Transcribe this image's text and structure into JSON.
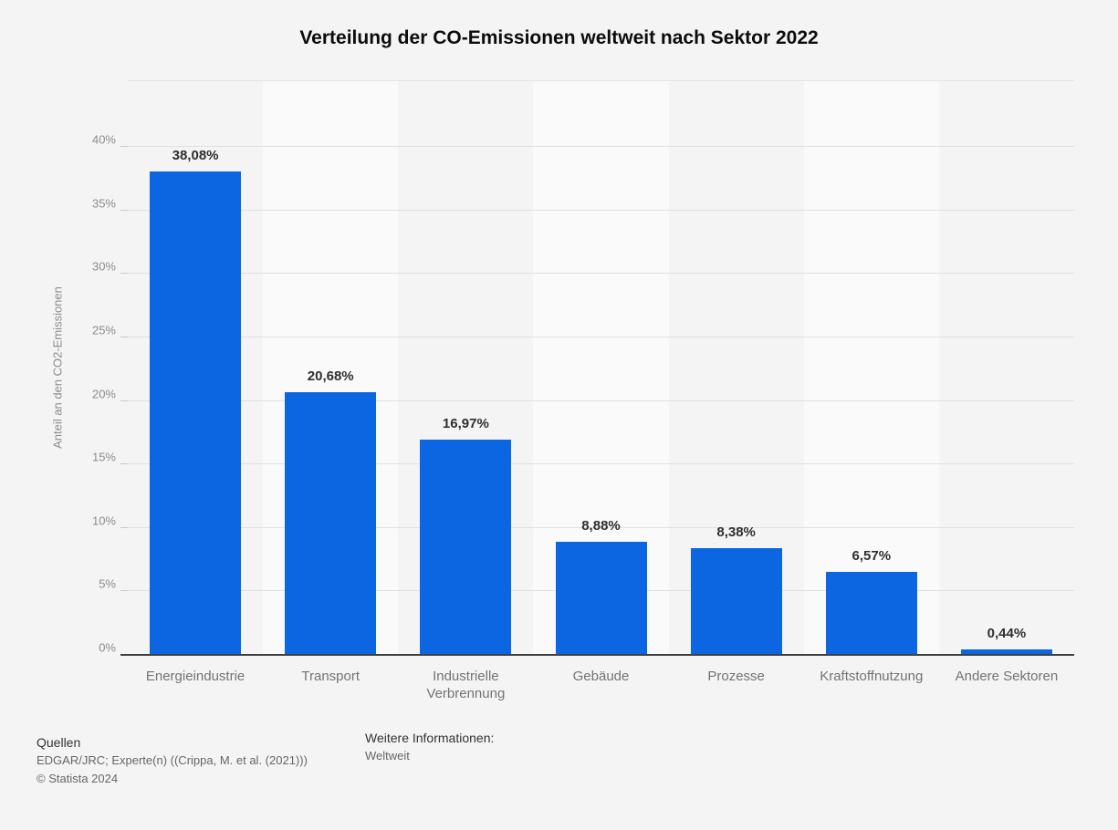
{
  "title": "Verteilung der CO-Emissionen weltweit nach Sektor 2022",
  "chart_data": {
    "type": "bar",
    "title": "Verteilung der CO-Emissionen weltweit nach Sektor 2022",
    "categories": [
      "Energieindustrie",
      "Transport",
      "Industrielle Verbrennung",
      "Gebäude",
      "Prozesse",
      "Kraftstoffnutzung",
      "Andere Sektoren"
    ],
    "values": [
      38.08,
      20.68,
      16.97,
      8.88,
      8.38,
      6.57,
      0.44
    ],
    "value_labels": [
      "38,08%",
      "20,68%",
      "16,97%",
      "8,88%",
      "8,38%",
      "6,57%",
      "0,44%"
    ],
    "xlabel": "",
    "ylabel": "Anteil an den CO2-Emissionen",
    "ylim": [
      0,
      45.2
    ],
    "yticks": [
      0,
      5,
      10,
      15,
      20,
      25,
      30,
      35,
      40
    ],
    "ytick_labels": [
      "0%",
      "5%",
      "10%",
      "15%",
      "20%",
      "25%",
      "30%",
      "35%",
      "40%"
    ],
    "grid": true,
    "legend": "none",
    "bar_color": "#0d66e1",
    "band_color": "#fafafa",
    "gridline_color": "#e0e0e0",
    "axis_color": "#3f3f3f"
  },
  "footer": {
    "sources_heading": "Quellen",
    "sources_line": "EDGAR/JRC; Experte(n) ((Crippa, M. et al. (2021)))",
    "copyright": "© Statista 2024",
    "info_heading": "Weitere Informationen:",
    "info_value": "Weltweit"
  }
}
